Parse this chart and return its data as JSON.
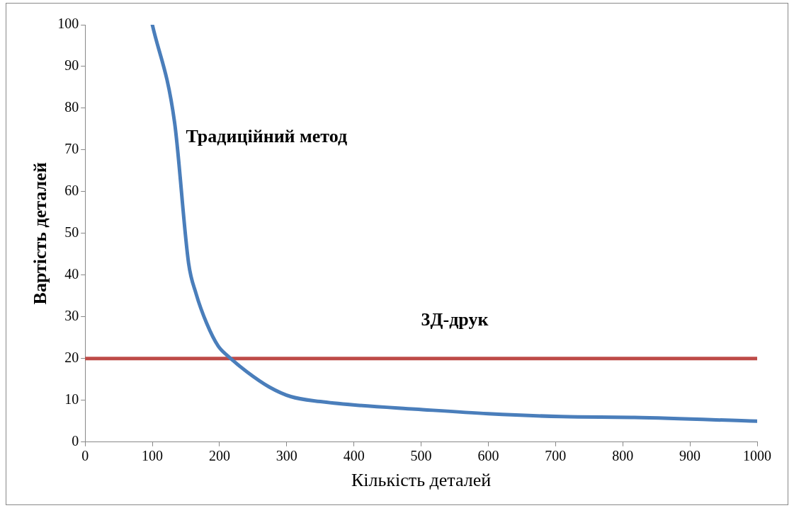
{
  "chart_data": {
    "type": "line",
    "xlabel": "Кількість деталей",
    "ylabel": "Вартість деталей",
    "xlim": [
      0,
      1000
    ],
    "xticks": [
      0,
      100,
      200,
      300,
      400,
      500,
      600,
      700,
      800,
      900,
      1000
    ],
    "ylim": [
      0,
      100
    ],
    "yticks": [
      0,
      10,
      20,
      30,
      40,
      50,
      60,
      70,
      80,
      90,
      100
    ],
    "grid": false,
    "legend": false,
    "marker": "none",
    "line_style": "solid",
    "series": [
      {
        "name": "Традиційний метод",
        "color": "#4a7ebb",
        "x": [
          100,
          133,
          154,
          165,
          181,
          198,
          214,
          241,
          274,
          306,
          350,
          399,
          491,
          600,
          709,
          817,
          1000
        ],
        "values": [
          100,
          76.7,
          42.8,
          35.6,
          28.4,
          23,
          20.4,
          16.8,
          13.2,
          10.9,
          9.7,
          8.9,
          7.9,
          6.8,
          6.1,
          5.9,
          5
        ]
      },
      {
        "name": "3Д-друк",
        "color": "#be4b48",
        "x": [
          0,
          1000
        ],
        "values": [
          20,
          20
        ]
      }
    ]
  }
}
